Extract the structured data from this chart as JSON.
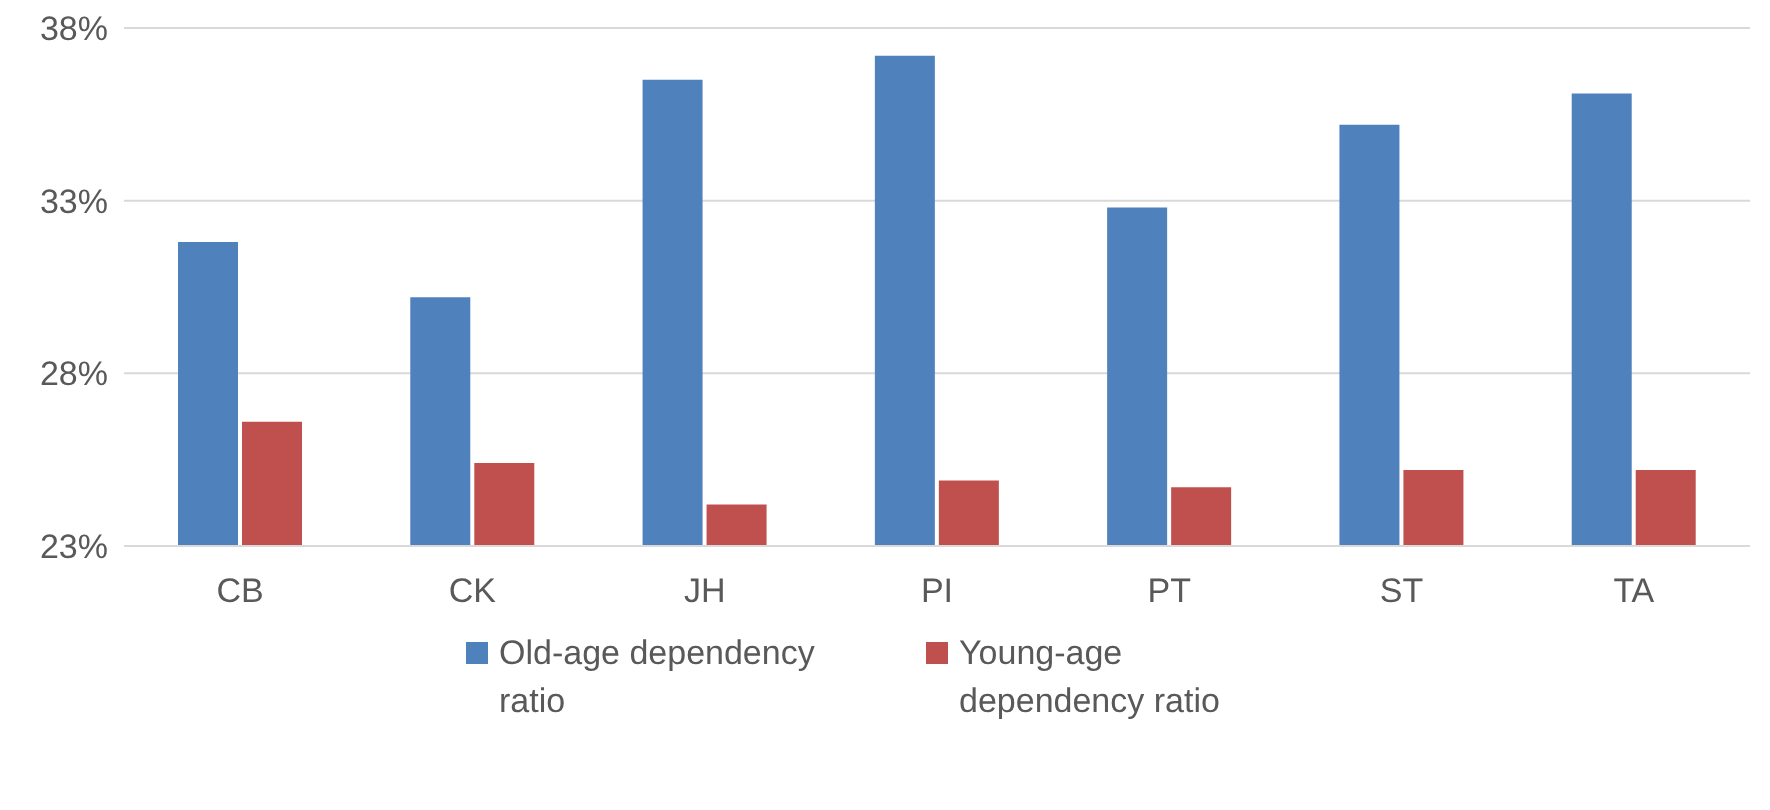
{
  "chart_data": {
    "type": "bar",
    "categories": [
      "CB",
      "CK",
      "JH",
      "PI",
      "PT",
      "ST",
      "TA"
    ],
    "series": [
      {
        "name": "Old-age dependency ratio",
        "color": "#4f81bd",
        "values": [
          31.8,
          30.2,
          36.5,
          37.2,
          32.8,
          35.2,
          36.1
        ]
      },
      {
        "name": "Young-age dependency ratio",
        "color": "#c0504d",
        "values": [
          26.6,
          25.4,
          24.2,
          24.9,
          24.7,
          25.2,
          25.2
        ]
      }
    ],
    "ylim": [
      23,
      38
    ],
    "yticks": [
      {
        "value": 23,
        "label": "23%"
      },
      {
        "value": 28,
        "label": "28%"
      },
      {
        "value": 33,
        "label": "33%"
      },
      {
        "value": 38,
        "label": "38%"
      }
    ],
    "grid": "y",
    "legend": "bottom"
  }
}
